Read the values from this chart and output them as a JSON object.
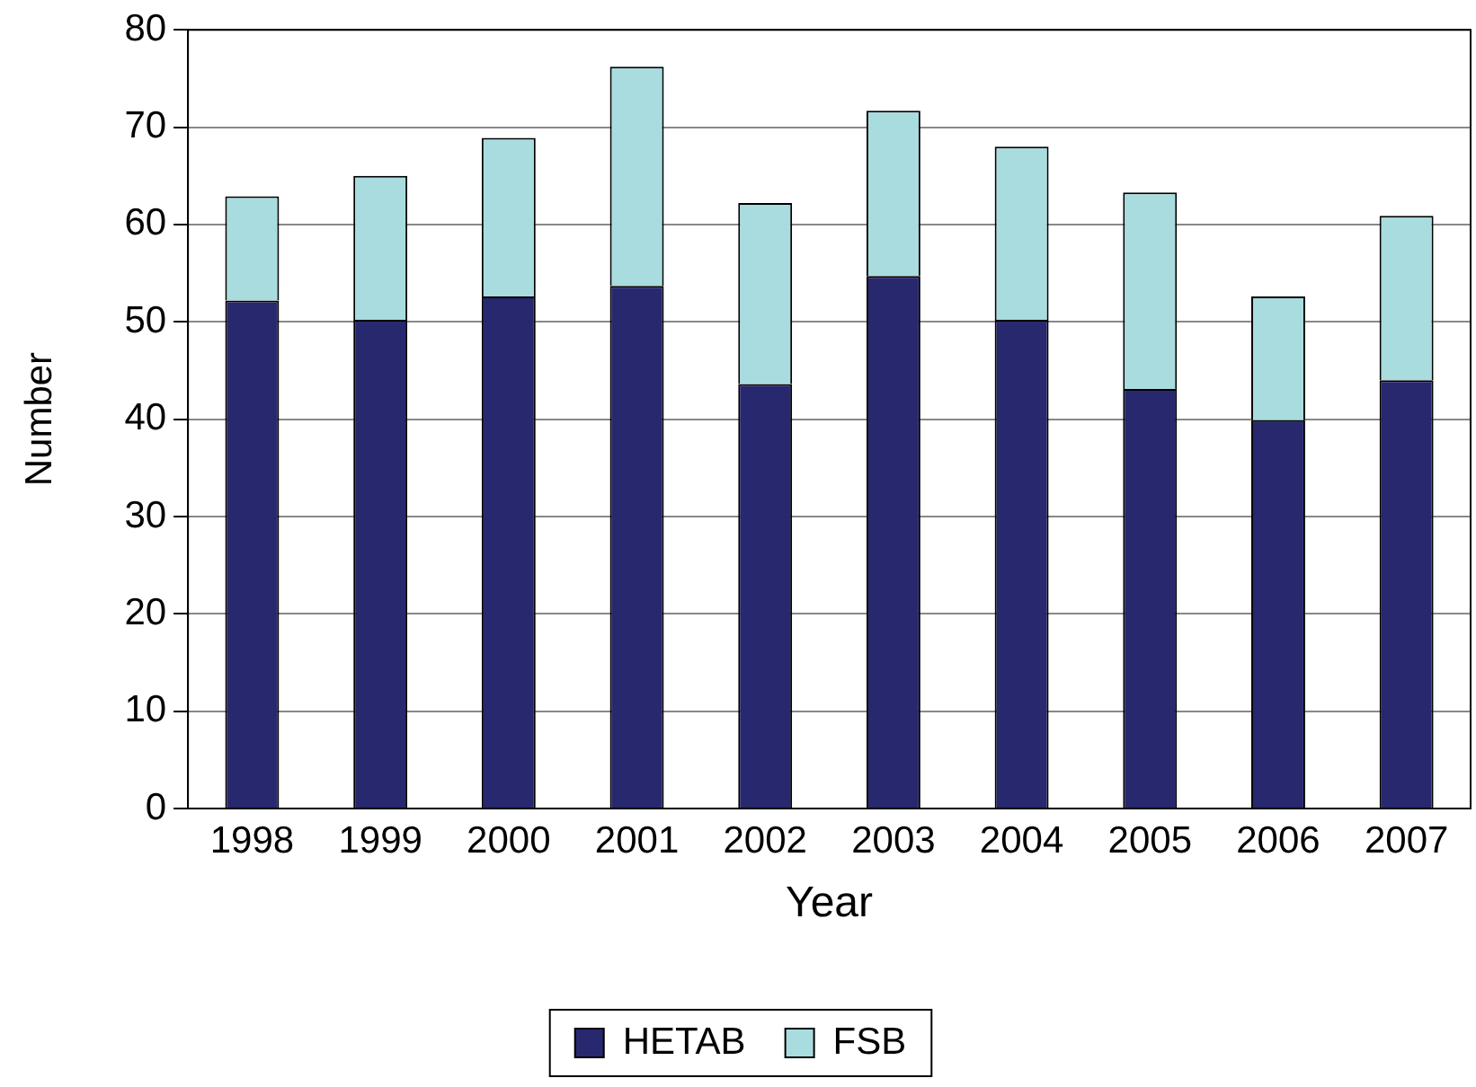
{
  "chart_data": {
    "type": "bar",
    "xlabel": "Year",
    "ylabel": "Number",
    "stacked": true,
    "grid": "y",
    "legend": "bottom",
    "categories": [
      "1998",
      "1999",
      "2000",
      "2001",
      "2002",
      "2003",
      "2004",
      "2005",
      "2006",
      "2007"
    ],
    "series": [
      {
        "name": "HETAB",
        "color": "#28286f",
        "values": [
          52.2,
          50.2,
          52.6,
          53.7,
          43.6,
          54.7,
          50.2,
          43.1,
          39.9,
          44.0
        ]
      },
      {
        "name": "FSB",
        "color": "#a8dcdf",
        "values": [
          10.7,
          14.8,
          16.3,
          22.5,
          18.6,
          17.0,
          17.8,
          20.2,
          12.7,
          16.9
        ]
      }
    ],
    "ylim": [
      0,
      80
    ],
    "yticks": [
      0,
      10,
      20,
      30,
      40,
      50,
      60,
      70,
      80
    ]
  }
}
